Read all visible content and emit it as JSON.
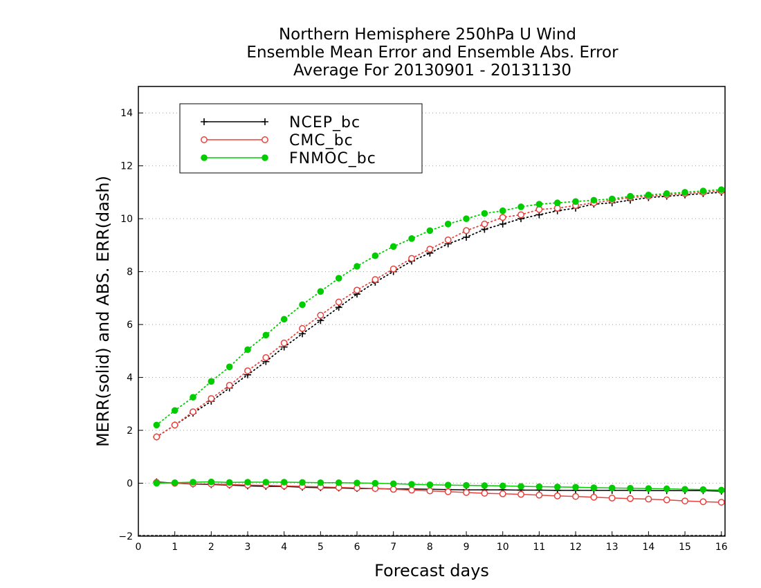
{
  "chart_data": {
    "type": "line",
    "title": [
      "Northern Hemisphere 250hPa U Wind",
      "Ensemble Mean Error and Ensemble Abs. Error",
      "Average For 20130901 - 20131130"
    ],
    "xlabel": "Forecast days",
    "ylabel": "MERR(solid) and ABS. ERR(dash)",
    "xlim": [
      0,
      16.1
    ],
    "ylim": [
      -2,
      15
    ],
    "xticks": [
      0,
      1,
      2,
      3,
      4,
      5,
      6,
      7,
      8,
      9,
      10,
      11,
      12,
      13,
      14,
      15,
      16
    ],
    "yticks": [
      -2,
      0,
      2,
      4,
      6,
      8,
      10,
      12,
      14
    ],
    "grid": "horizontal-dotted",
    "legend_placement": "top-left",
    "x": [
      0.5,
      1,
      1.5,
      2,
      2.5,
      3,
      3.5,
      4,
      4.5,
      5,
      5.5,
      6,
      6.5,
      7,
      7.5,
      8,
      8.5,
      9,
      9.5,
      10,
      10.5,
      11,
      11.5,
      12,
      12.5,
      13,
      13.5,
      14,
      14.5,
      15,
      15.5,
      16
    ],
    "series": [
      {
        "name": "NCEP_bc",
        "color": "#000000",
        "marker": "plus",
        "abs_err": [
          1.75,
          2.2,
          2.65,
          3.1,
          3.6,
          4.1,
          4.6,
          5.15,
          5.65,
          6.15,
          6.65,
          7.15,
          7.6,
          8.0,
          8.4,
          8.7,
          9.05,
          9.3,
          9.6,
          9.8,
          10.0,
          10.15,
          10.3,
          10.4,
          10.55,
          10.6,
          10.7,
          10.8,
          10.85,
          10.9,
          10.95,
          11.0
        ],
        "mean_err": [
          0.05,
          0.0,
          -0.03,
          -0.05,
          -0.07,
          -0.1,
          -0.12,
          -0.12,
          -0.15,
          -0.17,
          -0.18,
          -0.2,
          -0.2,
          -0.22,
          -0.22,
          -0.23,
          -0.24,
          -0.25,
          -0.25,
          -0.25,
          -0.26,
          -0.26,
          -0.27,
          -0.27,
          -0.27,
          -0.27,
          -0.27,
          -0.28,
          -0.28,
          -0.28,
          -0.28,
          -0.3
        ]
      },
      {
        "name": "CMC_bc",
        "color": "#e8413c",
        "marker": "open-circle",
        "abs_err": [
          1.75,
          2.2,
          2.7,
          3.2,
          3.7,
          4.25,
          4.75,
          5.3,
          5.85,
          6.35,
          6.85,
          7.3,
          7.7,
          8.1,
          8.5,
          8.85,
          9.2,
          9.55,
          9.8,
          10.05,
          10.15,
          10.35,
          10.4,
          10.5,
          10.6,
          10.7,
          10.8,
          10.85,
          10.9,
          10.95,
          11.0,
          11.05
        ],
        "mean_err": [
          0.03,
          0.0,
          -0.02,
          -0.03,
          -0.05,
          -0.07,
          -0.08,
          -0.1,
          -0.12,
          -0.14,
          -0.16,
          -0.18,
          -0.2,
          -0.23,
          -0.26,
          -0.29,
          -0.32,
          -0.35,
          -0.38,
          -0.4,
          -0.42,
          -0.45,
          -0.48,
          -0.5,
          -0.53,
          -0.56,
          -0.58,
          -0.6,
          -0.63,
          -0.67,
          -0.7,
          -0.72
        ]
      },
      {
        "name": "FNMOC_bc",
        "color": "#00cc00",
        "marker": "filled-circle",
        "abs_err": [
          2.2,
          2.75,
          3.25,
          3.85,
          4.4,
          5.05,
          5.6,
          6.2,
          6.75,
          7.25,
          7.75,
          8.2,
          8.6,
          8.95,
          9.25,
          9.55,
          9.8,
          10.0,
          10.2,
          10.3,
          10.45,
          10.55,
          10.6,
          10.65,
          10.7,
          10.75,
          10.85,
          10.9,
          10.95,
          11.0,
          11.05,
          11.1
        ],
        "mean_err": [
          0.0,
          0.02,
          0.04,
          0.05,
          0.03,
          0.04,
          0.04,
          0.04,
          0.03,
          0.02,
          0.02,
          0.01,
          0.0,
          -0.02,
          -0.04,
          -0.06,
          -0.07,
          -0.08,
          -0.09,
          -0.1,
          -0.12,
          -0.13,
          -0.14,
          -0.15,
          -0.17,
          -0.18,
          -0.19,
          -0.2,
          -0.21,
          -0.23,
          -0.24,
          -0.26
        ]
      }
    ]
  }
}
